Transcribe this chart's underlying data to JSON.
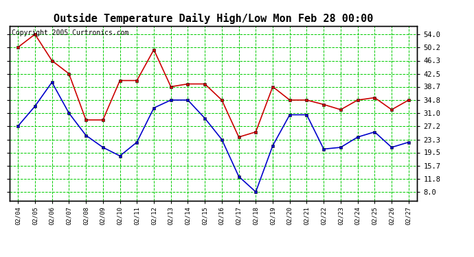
{
  "title": "Outside Temperature Daily High/Low Mon Feb 28 00:00",
  "copyright": "Copyright 2005 Curtronics.com",
  "dates": [
    "02/04",
    "02/05",
    "02/06",
    "02/07",
    "02/08",
    "02/09",
    "02/10",
    "02/11",
    "02/12",
    "02/13",
    "02/14",
    "02/15",
    "02/16",
    "02/17",
    "02/18",
    "02/19",
    "02/20",
    "02/21",
    "02/22",
    "02/23",
    "02/24",
    "02/25",
    "02/26",
    "02/27"
  ],
  "high_temps": [
    50.2,
    54.0,
    46.3,
    42.5,
    29.0,
    29.0,
    40.5,
    40.5,
    49.5,
    38.7,
    39.5,
    39.5,
    34.8,
    24.0,
    25.5,
    38.7,
    34.8,
    34.8,
    33.5,
    32.0,
    34.8,
    35.5,
    32.0,
    34.8
  ],
  "low_temps": [
    27.2,
    33.0,
    40.0,
    31.0,
    24.5,
    21.0,
    18.5,
    22.5,
    32.5,
    34.8,
    34.8,
    29.5,
    23.3,
    12.5,
    8.0,
    21.5,
    30.5,
    30.5,
    20.5,
    21.0,
    24.0,
    25.5,
    21.0,
    22.5
  ],
  "high_color": "#cc0000",
  "low_color": "#0000cc",
  "bg_color": "#ffffff",
  "grid_color": "#00cc00",
  "yticks": [
    8.0,
    11.8,
    15.7,
    19.5,
    23.3,
    27.2,
    31.0,
    34.8,
    38.7,
    42.5,
    46.3,
    50.2,
    54.0
  ],
  "ylim": [
    5.5,
    56.5
  ],
  "title_fontsize": 11,
  "copyright_fontsize": 7,
  "marker_size": 3,
  "linewidth": 1.2
}
